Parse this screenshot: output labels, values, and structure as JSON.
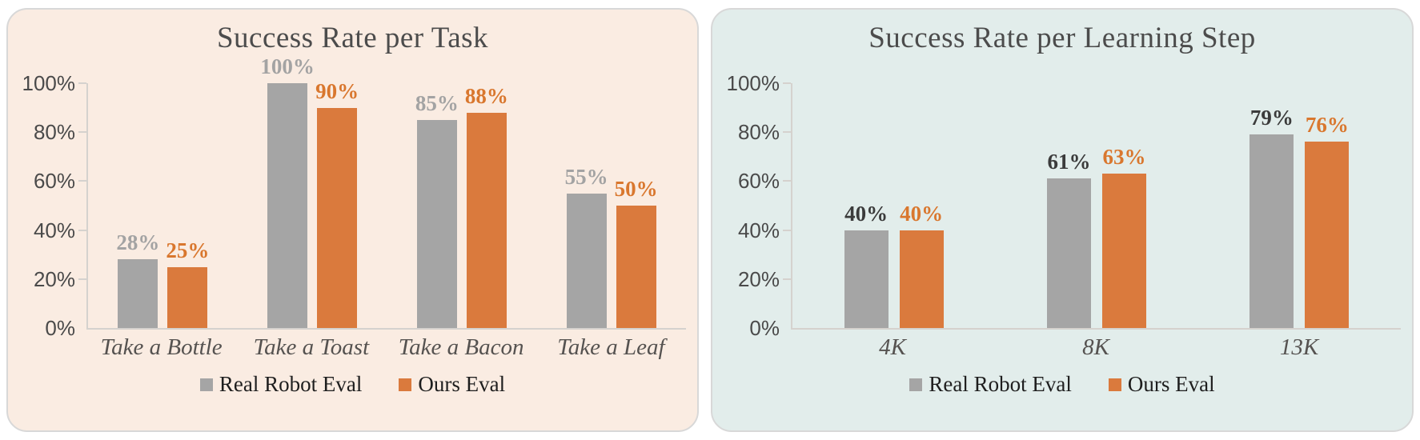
{
  "page": {
    "background": "#ffffff"
  },
  "chart_data": [
    {
      "type": "bar",
      "title": "Success Rate per Task",
      "panel_bg": "#FAECE2",
      "categories": [
        "Take a Bottle",
        "Take a Toast",
        "Take a Bacon",
        "Take a Leaf"
      ],
      "series": [
        {
          "name": "Real Robot Eval",
          "color": "#A5A5A5",
          "label_color": "#A3A3A3",
          "values": [
            28,
            100,
            85,
            55
          ]
        },
        {
          "name": "Ours Eval",
          "color": "#DA7A3D",
          "label_color": "#D9772E",
          "values": [
            25,
            90,
            88,
            50
          ]
        }
      ],
      "value_suffix": "%",
      "y_ticks": [
        "0%",
        "20%",
        "40%",
        "60%",
        "80%",
        "100%"
      ],
      "ylim": [
        0,
        100
      ],
      "grid": false,
      "legend_position": "bottom"
    },
    {
      "type": "bar",
      "title": "Success Rate per Learning Step",
      "panel_bg": "#E2EDEB",
      "categories": [
        "4K",
        "8K",
        "13K"
      ],
      "series": [
        {
          "name": "Real Robot Eval",
          "color": "#A5A5A5",
          "label_color": "#3B3B3B",
          "values": [
            40,
            61,
            79
          ]
        },
        {
          "name": "Ours Eval",
          "color": "#DA7A3D",
          "label_color": "#D9772E",
          "values": [
            40,
            63,
            76
          ]
        }
      ],
      "value_suffix": "%",
      "y_ticks": [
        "0%",
        "20%",
        "40%",
        "60%",
        "80%",
        "100%"
      ],
      "ylim": [
        0,
        100
      ],
      "grid": false,
      "legend_position": "bottom"
    }
  ]
}
